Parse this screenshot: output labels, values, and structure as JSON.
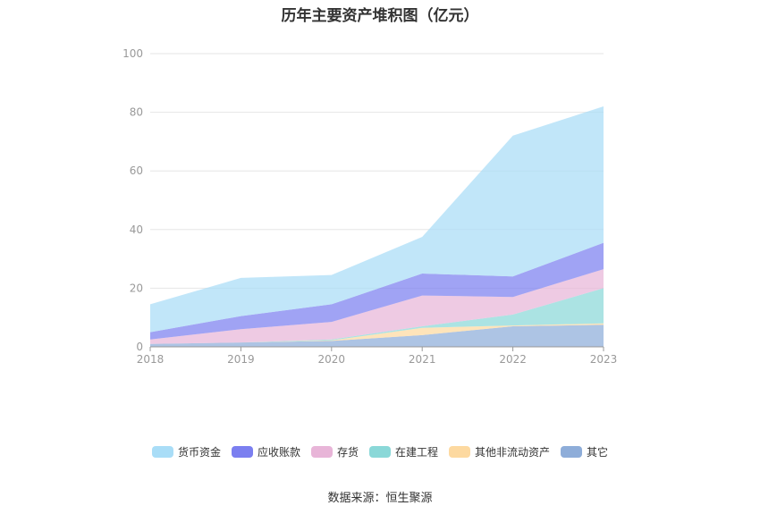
{
  "title": "历年主要资产堆积图（亿元）",
  "source": "数据来源：恒生聚源",
  "chart_data": {
    "type": "area",
    "stacked": true,
    "categories": [
      "2018",
      "2019",
      "2020",
      "2021",
      "2022",
      "2023"
    ],
    "ylim": [
      0,
      100
    ],
    "yticks": [
      0,
      20,
      40,
      60,
      80,
      100
    ],
    "grid": true,
    "legend_position": "bottom",
    "series": [
      {
        "name": "其它",
        "color": "#8eadd9",
        "values": [
          1.0,
          1.5,
          2.0,
          4.0,
          7.0,
          7.5
        ]
      },
      {
        "name": "其他非流动资产",
        "color": "#fdd9a0",
        "values": [
          0.0,
          0.0,
          0.2,
          2.5,
          0.3,
          0.5
        ]
      },
      {
        "name": "在建工程",
        "color": "#8ad8d8",
        "values": [
          0.0,
          0.0,
          0.3,
          0.5,
          3.7,
          12.0
        ]
      },
      {
        "name": "存货",
        "color": "#e8b5d8",
        "values": [
          1.5,
          4.5,
          6.0,
          10.5,
          6.0,
          6.5
        ]
      },
      {
        "name": "应收账款",
        "color": "#7b7ff0",
        "values": [
          2.5,
          4.5,
          6.0,
          7.5,
          7.0,
          9.0
        ]
      },
      {
        "name": "货币资金",
        "color": "#a9ddf7",
        "values": [
          9.5,
          13.0,
          10.0,
          12.5,
          48.0,
          46.5
        ]
      }
    ],
    "legend_order": [
      "货币资金",
      "应收账款",
      "存货",
      "在建工程",
      "其他非流动资产",
      "其它"
    ]
  }
}
